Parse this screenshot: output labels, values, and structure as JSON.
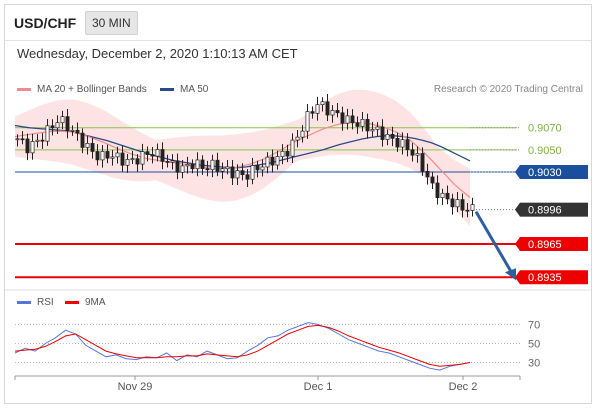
{
  "header": {
    "symbol": "USD/CHF",
    "timeframe": "30 MIN",
    "datetime": "Wednesday, December 2, 2020 1:10:13 AM CET"
  },
  "legend": {
    "ma20_label": "MA 20 + Bollinger Bands",
    "ma50_label": "MA 50",
    "credit": "Research © 2020 Trading Central"
  },
  "rsi_legend": {
    "rsi_label": "RSI",
    "ma9_label": "9MA"
  },
  "colors": {
    "ma20": "#f08c8c",
    "ma50": "#2c4a86",
    "bollinger_fill": "#fde0e0",
    "level_green": "#8bc34a",
    "level_blue": "#1a4fa0",
    "level_red": "#ee0000",
    "current_price": "#333333",
    "rsi": "#5577dd",
    "rsi_ma": "#ee0000",
    "arrow": "#2d5fa0",
    "candle_up": "#ffffff",
    "candle_down": "#222222"
  },
  "chart_data": [
    {
      "type": "candlestick",
      "title": "",
      "x_ticks": [
        "Nov 29",
        "Dec 1",
        "Dec 2"
      ],
      "ylim": [
        0.8928,
        0.9095
      ],
      "levels": [
        {
          "value": 0.907,
          "label": "0.9070",
          "kind": "resistance"
        },
        {
          "value": 0.905,
          "label": "0.9050",
          "kind": "resistance"
        },
        {
          "value": 0.903,
          "label": "0.9030",
          "kind": "pivot"
        },
        {
          "value": 0.8996,
          "label": "0.8996",
          "kind": "current"
        },
        {
          "value": 0.8965,
          "label": "0.8965",
          "kind": "support"
        },
        {
          "value": 0.8935,
          "label": "0.8935",
          "kind": "support"
        }
      ],
      "price_path": [
        0.906,
        0.9052,
        0.9058,
        0.9068,
        0.9078,
        0.907,
        0.906,
        0.905,
        0.9043,
        0.9046,
        0.9041,
        0.9039,
        0.9044,
        0.9048,
        0.9043,
        0.9036,
        0.9033,
        0.9038,
        0.9034,
        0.9036,
        0.9032,
        0.9029,
        0.9026,
        0.9033,
        0.9038,
        0.9042,
        0.9048,
        0.906,
        0.9079,
        0.9092,
        0.9086,
        0.9081,
        0.9076,
        0.9074,
        0.907,
        0.9066,
        0.906,
        0.9056,
        0.905,
        0.9038,
        0.9018,
        0.9008,
        0.9003,
        0.8998,
        0.8996
      ],
      "ma50": [
        0.9072,
        0.907,
        0.9069,
        0.9068,
        0.9067,
        0.9064,
        0.9061,
        0.9058,
        0.9054,
        0.905,
        0.9046,
        0.9043,
        0.904,
        0.9038,
        0.9036,
        0.9035,
        0.9034,
        0.9034,
        0.9036,
        0.9038,
        0.9041,
        0.9044,
        0.9047,
        0.905,
        0.9054,
        0.9057,
        0.906,
        0.9062,
        0.9063,
        0.9062,
        0.906,
        0.9057,
        0.9052,
        0.9046,
        0.904
      ],
      "ma20": [
        0.9062,
        0.9064,
        0.9066,
        0.9067,
        0.9066,
        0.9062,
        0.9057,
        0.9051,
        0.9046,
        0.9042,
        0.904,
        0.9038,
        0.9036,
        0.9034,
        0.9033,
        0.9034,
        0.9037,
        0.9042,
        0.9049,
        0.9057,
        0.9063,
        0.9069,
        0.9073,
        0.9075,
        0.9074,
        0.9071,
        0.9066,
        0.9058,
        0.9046,
        0.9032,
        0.9018,
        0.9007
      ],
      "forecast": {
        "from": 0.8996,
        "to": 0.8935
      }
    },
    {
      "type": "line",
      "title": "RSI",
      "x_ticks": [
        "Nov 29",
        "Dec 1",
        "Dec 2"
      ],
      "y_ticks": [
        70,
        50,
        30
      ],
      "ylim": [
        20,
        80
      ],
      "series": [
        {
          "name": "RSI",
          "values": [
            40,
            45,
            42,
            50,
            56,
            64,
            60,
            48,
            42,
            36,
            38,
            34,
            33,
            36,
            35,
            40,
            32,
            38,
            36,
            42,
            38,
            34,
            35,
            42,
            48,
            56,
            58,
            64,
            68,
            72,
            70,
            66,
            60,
            54,
            50,
            46,
            42,
            40,
            36,
            32,
            28,
            24,
            22,
            26,
            28,
            30
          ]
        },
        {
          "name": "9MA",
          "values": [
            42,
            43,
            44,
            47,
            52,
            58,
            60,
            54,
            48,
            42,
            39,
            37,
            35,
            35,
            35,
            36,
            36,
            37,
            37,
            39,
            38,
            37,
            36,
            38,
            42,
            48,
            54,
            60,
            64,
            68,
            69,
            67,
            63,
            58,
            54,
            50,
            46,
            43,
            40,
            36,
            32,
            28,
            26,
            27,
            28,
            30
          ]
        }
      ]
    }
  ]
}
